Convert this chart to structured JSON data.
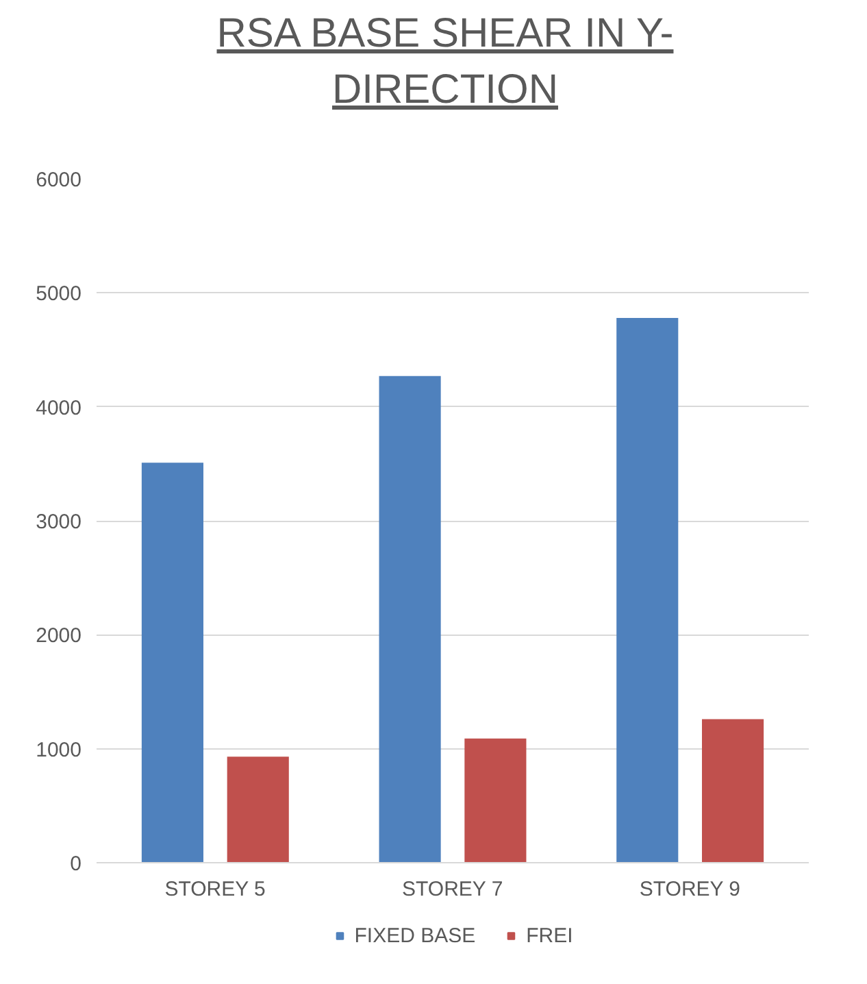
{
  "chart_data": {
    "type": "bar",
    "title": "RSA BASE SHEAR IN Y-DIRECTION",
    "categories": [
      "STOREY 5",
      "STOREY 7",
      "STOREY 9"
    ],
    "series": [
      {
        "name": "FIXED BASE",
        "color": "#4f81bd",
        "values": [
          3510,
          4270,
          4780
        ]
      },
      {
        "name": "FREI",
        "color": "#c0504d",
        "values": [
          930,
          1090,
          1260
        ]
      }
    ],
    "ylim": [
      0,
      6000
    ],
    "yticks": [
      0,
      1000,
      2000,
      3000,
      4000,
      5000,
      6000
    ],
    "grid": "y",
    "legend": "bottom"
  }
}
